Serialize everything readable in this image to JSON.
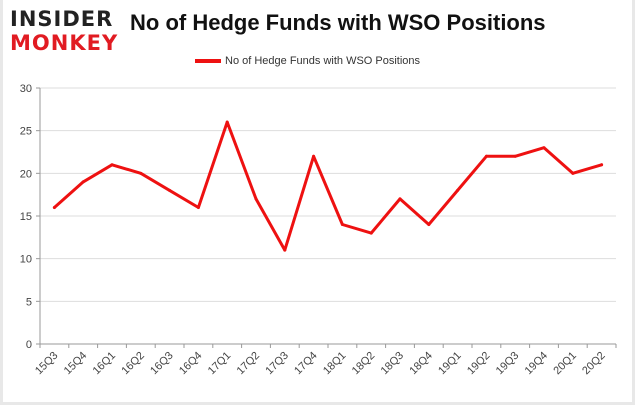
{
  "header": {
    "logo_top": "INSIDER",
    "logo_bottom": "MONKEY",
    "title": "No of Hedge Funds with WSO Positions"
  },
  "colors": {
    "line": "#ee1111",
    "grid": "#dddddd",
    "logo_red": "#e11b22"
  },
  "chart_data": {
    "type": "line",
    "title": "No of Hedge Funds with WSO Positions",
    "legend_position": "top-center",
    "grid": true,
    "ylim": [
      0,
      30
    ],
    "yticks": [
      0,
      5,
      10,
      15,
      20,
      25,
      30
    ],
    "categories": [
      "15Q3",
      "15Q4",
      "16Q1",
      "16Q2",
      "16Q3",
      "16Q4",
      "17Q1",
      "17Q2",
      "17Q3",
      "17Q4",
      "18Q1",
      "18Q2",
      "18Q3",
      "18Q4",
      "19Q1",
      "19Q2",
      "19Q3",
      "19Q4",
      "20Q1",
      "20Q2"
    ],
    "series": [
      {
        "name": "No of Hedge Funds with WSO Positions",
        "values": [
          16,
          19,
          21,
          20,
          18,
          16,
          26,
          17,
          11,
          22,
          14,
          13,
          17,
          14,
          18,
          22,
          22,
          23,
          20,
          21
        ]
      }
    ]
  }
}
